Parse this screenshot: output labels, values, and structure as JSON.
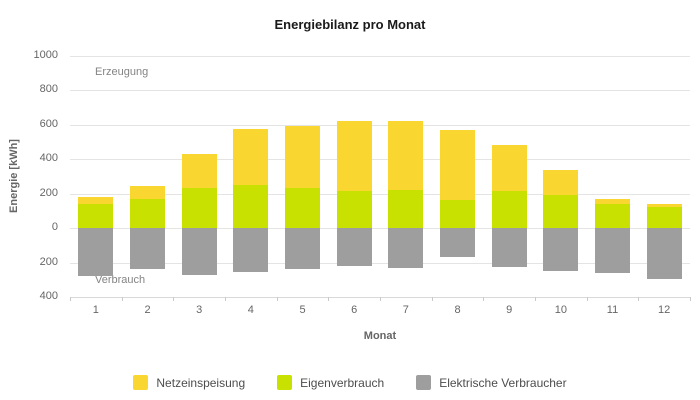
{
  "title": "Energiebilanz pro Monat",
  "y_axis": {
    "title": "Energie [kWh]"
  },
  "x_axis": {
    "title": "Monat"
  },
  "annotations": {
    "production": "Erzeugung",
    "consumption": "Verbrauch"
  },
  "legend": [
    {
      "label": "Netzeinspeisung",
      "color": "#f9d730"
    },
    {
      "label": "Eigenverbrauch",
      "color": "#c8e100"
    },
    {
      "label": "Elektrische Verbraucher",
      "color": "#9e9e9e"
    }
  ],
  "colors": {
    "grid": "#e4e4e4",
    "axis_text": "#666666",
    "title_text": "#1a1a1a"
  },
  "chart_data": {
    "type": "bar",
    "stacked": true,
    "title": "Energiebilanz pro Monat",
    "xlabel": "Monat",
    "ylabel": "Energie [kWh]",
    "categories": [
      "1",
      "2",
      "3",
      "4",
      "5",
      "6",
      "7",
      "8",
      "9",
      "10",
      "11",
      "12"
    ],
    "series": [
      {
        "name": "Netzeinspeisung",
        "color": "#f9d730",
        "values": [
          40,
          75,
          195,
          325,
          360,
          410,
          400,
          405,
          270,
          145,
          30,
          20
        ]
      },
      {
        "name": "Eigenverbrauch",
        "color": "#c8e100",
        "values": [
          140,
          170,
          235,
          250,
          235,
          215,
          220,
          165,
          215,
          190,
          140,
          120
        ]
      },
      {
        "name": "Elektrische Verbraucher",
        "color": "#9e9e9e",
        "values": [
          -280,
          -235,
          -270,
          -255,
          -235,
          -220,
          -230,
          -170,
          -225,
          -250,
          -260,
          -295
        ]
      }
    ],
    "ylim": [
      -400,
      1000
    ],
    "y_tick_interval": 200,
    "y_tick_labels_absolute": true,
    "grid": true,
    "legend_position": "bottom",
    "annotations": [
      {
        "text": "Erzeugung",
        "region": "positive"
      },
      {
        "text": "Verbrauch",
        "region": "negative"
      }
    ]
  }
}
